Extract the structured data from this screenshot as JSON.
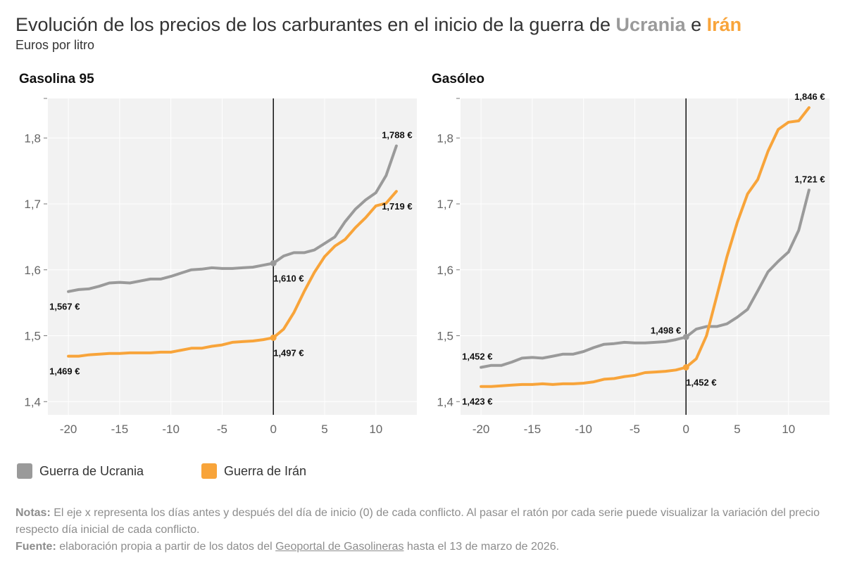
{
  "header": {
    "title_prefix": "Evolución de los precios de los carburantes en el inicio de la guerra de",
    "title_ukraine": "Ucrania",
    "title_and": "e",
    "title_iran": "Irán",
    "subtitle": "Euros por litro"
  },
  "colors": {
    "ukraine": "#9a9a9a",
    "iran": "#f8a43a",
    "plot_bg": "#f2f2f2",
    "grid": "#ffffff",
    "zero_line": "#111111"
  },
  "legend": [
    {
      "label": "Guerra de Ucrania",
      "color": "#9a9a9a"
    },
    {
      "label": "Guerra de Irán",
      "color": "#f8a43a"
    }
  ],
  "chart_data": [
    {
      "type": "line",
      "title": "Gasolina 95",
      "xlabel": "",
      "ylabel": "",
      "xlim": [
        -22,
        14
      ],
      "ylim": [
        1.38,
        1.86
      ],
      "x_ticks": [
        -20,
        -15,
        -10,
        -5,
        0,
        5,
        10
      ],
      "x_tick_labels": [
        "-20",
        "-15",
        "-10",
        "-5",
        "0",
        "5",
        "10"
      ],
      "y_ticks": [
        1.4,
        1.5,
        1.6,
        1.7,
        1.8
      ],
      "y_tick_labels": [
        "1,4",
        "1,5",
        "1,6",
        "1,7",
        "1,8"
      ],
      "series": [
        {
          "name": "Guerra de Ucrania",
          "x": [
            -20,
            -19,
            -18,
            -17,
            -16,
            -15,
            -14,
            -13,
            -12,
            -11,
            -10,
            -9,
            -8,
            -7,
            -6,
            -5,
            -4,
            -3,
            -2,
            -1,
            0,
            1,
            2,
            3,
            4,
            5,
            6,
            7,
            8,
            9,
            10,
            11,
            12
          ],
          "values": [
            1.567,
            1.57,
            1.571,
            1.575,
            1.58,
            1.581,
            1.58,
            1.583,
            1.586,
            1.586,
            1.59,
            1.595,
            1.6,
            1.601,
            1.603,
            1.602,
            1.602,
            1.603,
            1.604,
            1.607,
            1.61,
            1.621,
            1.626,
            1.626,
            1.63,
            1.64,
            1.65,
            1.673,
            1.692,
            1.706,
            1.717,
            1.743,
            1.788
          ],
          "labels": [
            {
              "x": -20,
              "text": "1,567 €",
              "pos": "below"
            },
            {
              "x": 0,
              "text": "1,610 €",
              "pos": "below"
            },
            {
              "x": 12,
              "text": "1,788 €",
              "pos": "above"
            }
          ]
        },
        {
          "name": "Guerra de Irán",
          "x": [
            -20,
            -19,
            -18,
            -17,
            -16,
            -15,
            -14,
            -13,
            -12,
            -11,
            -10,
            -9,
            -8,
            -7,
            -6,
            -5,
            -4,
            -3,
            -2,
            -1,
            0,
            1,
            2,
            3,
            4,
            5,
            6,
            7,
            8,
            9,
            10,
            11,
            12
          ],
          "values": [
            1.469,
            1.469,
            1.471,
            1.472,
            1.473,
            1.473,
            1.474,
            1.474,
            1.474,
            1.475,
            1.475,
            1.478,
            1.481,
            1.481,
            1.484,
            1.486,
            1.49,
            1.491,
            1.492,
            1.494,
            1.497,
            1.51,
            1.535,
            1.567,
            1.596,
            1.62,
            1.636,
            1.646,
            1.664,
            1.679,
            1.697,
            1.701,
            1.719
          ],
          "labels": [
            {
              "x": -20,
              "text": "1,469 €",
              "pos": "below"
            },
            {
              "x": 0,
              "text": "1,497 €",
              "pos": "below"
            },
            {
              "x": 12,
              "text": "1,719 €",
              "pos": "below"
            }
          ]
        }
      ]
    },
    {
      "type": "line",
      "title": "Gasóleo",
      "xlabel": "",
      "ylabel": "",
      "xlim": [
        -22,
        14
      ],
      "ylim": [
        1.38,
        1.86
      ],
      "x_ticks": [
        -20,
        -15,
        -10,
        -5,
        0,
        5,
        10
      ],
      "x_tick_labels": [
        "-20",
        "-15",
        "-10",
        "-5",
        "0",
        "5",
        "10"
      ],
      "y_ticks": [
        1.4,
        1.5,
        1.6,
        1.7,
        1.8
      ],
      "y_tick_labels": [
        "1,4",
        "1,5",
        "1,6",
        "1,7",
        "1,8"
      ],
      "series": [
        {
          "name": "Guerra de Ucrania",
          "x": [
            -20,
            -19,
            -18,
            -17,
            -16,
            -15,
            -14,
            -13,
            -12,
            -11,
            -10,
            -9,
            -8,
            -7,
            -6,
            -5,
            -4,
            -3,
            -2,
            -1,
            0,
            1,
            2,
            3,
            4,
            5,
            6,
            7,
            8,
            9,
            10,
            11,
            12
          ],
          "values": [
            1.452,
            1.455,
            1.455,
            1.46,
            1.466,
            1.467,
            1.466,
            1.469,
            1.472,
            1.472,
            1.476,
            1.482,
            1.487,
            1.488,
            1.49,
            1.489,
            1.489,
            1.49,
            1.491,
            1.494,
            1.498,
            1.51,
            1.514,
            1.514,
            1.518,
            1.528,
            1.54,
            1.568,
            1.597,
            1.613,
            1.627,
            1.66,
            1.721
          ],
          "labels": [
            {
              "x": -20,
              "text": "1,452 €",
              "pos": "above"
            },
            {
              "x": 0,
              "text": "1,498 €",
              "pos": "above-left"
            },
            {
              "x": 12,
              "text": "1,721 €",
              "pos": "above"
            }
          ]
        },
        {
          "name": "Guerra de Irán",
          "x": [
            -20,
            -19,
            -18,
            -17,
            -16,
            -15,
            -14,
            -13,
            -12,
            -11,
            -10,
            -9,
            -8,
            -7,
            -6,
            -5,
            -4,
            -3,
            -2,
            -1,
            0,
            1,
            2,
            3,
            4,
            5,
            6,
            7,
            8,
            9,
            10,
            11,
            12
          ],
          "values": [
            1.423,
            1.423,
            1.424,
            1.425,
            1.426,
            1.426,
            1.427,
            1.426,
            1.427,
            1.427,
            1.428,
            1.43,
            1.434,
            1.435,
            1.438,
            1.44,
            1.444,
            1.445,
            1.446,
            1.448,
            1.452,
            1.465,
            1.5,
            1.56,
            1.62,
            1.672,
            1.715,
            1.737,
            1.78,
            1.813,
            1.824,
            1.826,
            1.846
          ],
          "labels": [
            {
              "x": -20,
              "text": "1,423 €",
              "pos": "below"
            },
            {
              "x": 0,
              "text": "1,452 €",
              "pos": "below"
            },
            {
              "x": 12,
              "text": "1,846 €",
              "pos": "above"
            }
          ]
        }
      ]
    }
  ],
  "notes": {
    "notes_label": "Notas:",
    "notes_text": "El eje x representa los días antes y después del día de inicio (0) de cada conflicto. Al pasar el ratón por cada serie puede visualizar la variación del precio respecto día inicial de cada conflicto.",
    "source_label": "Fuente:",
    "source_text_before": "elaboración propia a partir de los datos del",
    "source_link": "Geoportal de Gasolineras",
    "source_text_after": "hasta el 13 de marzo de 2026."
  }
}
